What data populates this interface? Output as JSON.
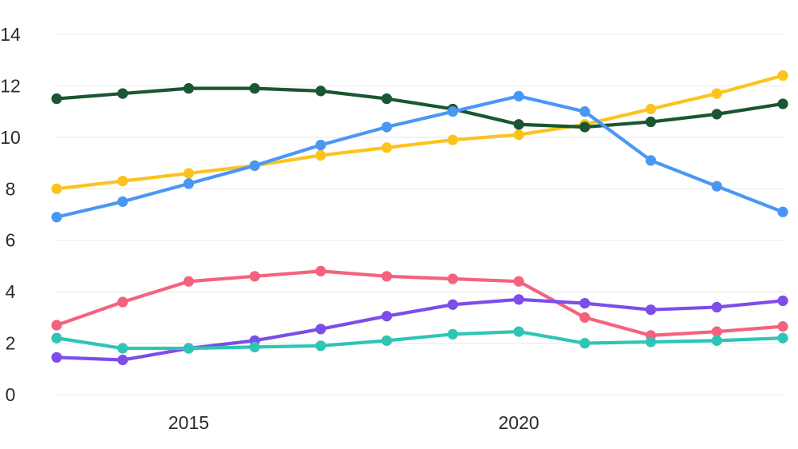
{
  "chart_data": {
    "type": "line",
    "title": "",
    "xlabel": "",
    "ylabel": "",
    "x": [
      2013,
      2014,
      2015,
      2016,
      2017,
      2018,
      2019,
      2020,
      2021,
      2022,
      2023,
      2024
    ],
    "series": [
      {
        "name": "pink",
        "color": "#F5627D",
        "values": [
          2.7,
          3.6,
          4.4,
          4.6,
          4.8,
          4.6,
          4.5,
          4.4,
          3.0,
          2.3,
          2.45,
          2.65
        ]
      },
      {
        "name": "purple",
        "color": "#7C4DE9",
        "values": [
          1.45,
          1.35,
          1.8,
          2.1,
          2.55,
          3.05,
          3.5,
          3.7,
          3.55,
          3.3,
          3.4,
          3.65
        ]
      },
      {
        "name": "teal",
        "color": "#2EC5B6",
        "values": [
          2.2,
          1.8,
          1.8,
          1.85,
          1.9,
          2.1,
          2.35,
          2.45,
          2.0,
          2.05,
          2.1,
          2.2
        ]
      },
      {
        "name": "gold",
        "color": "#FBC41D",
        "values": [
          8.0,
          8.3,
          8.6,
          8.9,
          9.3,
          9.6,
          9.9,
          10.1,
          10.5,
          11.1,
          11.7,
          12.4
        ]
      },
      {
        "name": "dark-green",
        "color": "#1A5632",
        "values": [
          11.5,
          11.7,
          11.9,
          11.9,
          11.8,
          11.5,
          11.1,
          10.5,
          10.4,
          10.6,
          10.9,
          11.3
        ]
      },
      {
        "name": "blue",
        "color": "#4A97F3",
        "values": [
          6.9,
          7.5,
          8.2,
          8.9,
          9.7,
          10.4,
          11.0,
          11.6,
          11.0,
          9.1,
          8.1,
          7.1
        ]
      }
    ],
    "y_ticks": [
      0,
      2,
      4,
      6,
      8,
      10,
      12,
      14
    ],
    "x_tick_labels": [
      {
        "x": 2015,
        "label": "2015"
      },
      {
        "x": 2020,
        "label": "2020"
      }
    ],
    "ylim": [
      0,
      14
    ],
    "grid": "horizontal",
    "legend": "none",
    "colors": {
      "grid": "#E8E8E8",
      "tick_text": "#2B2B2B",
      "background": "#FFFFFF"
    }
  }
}
